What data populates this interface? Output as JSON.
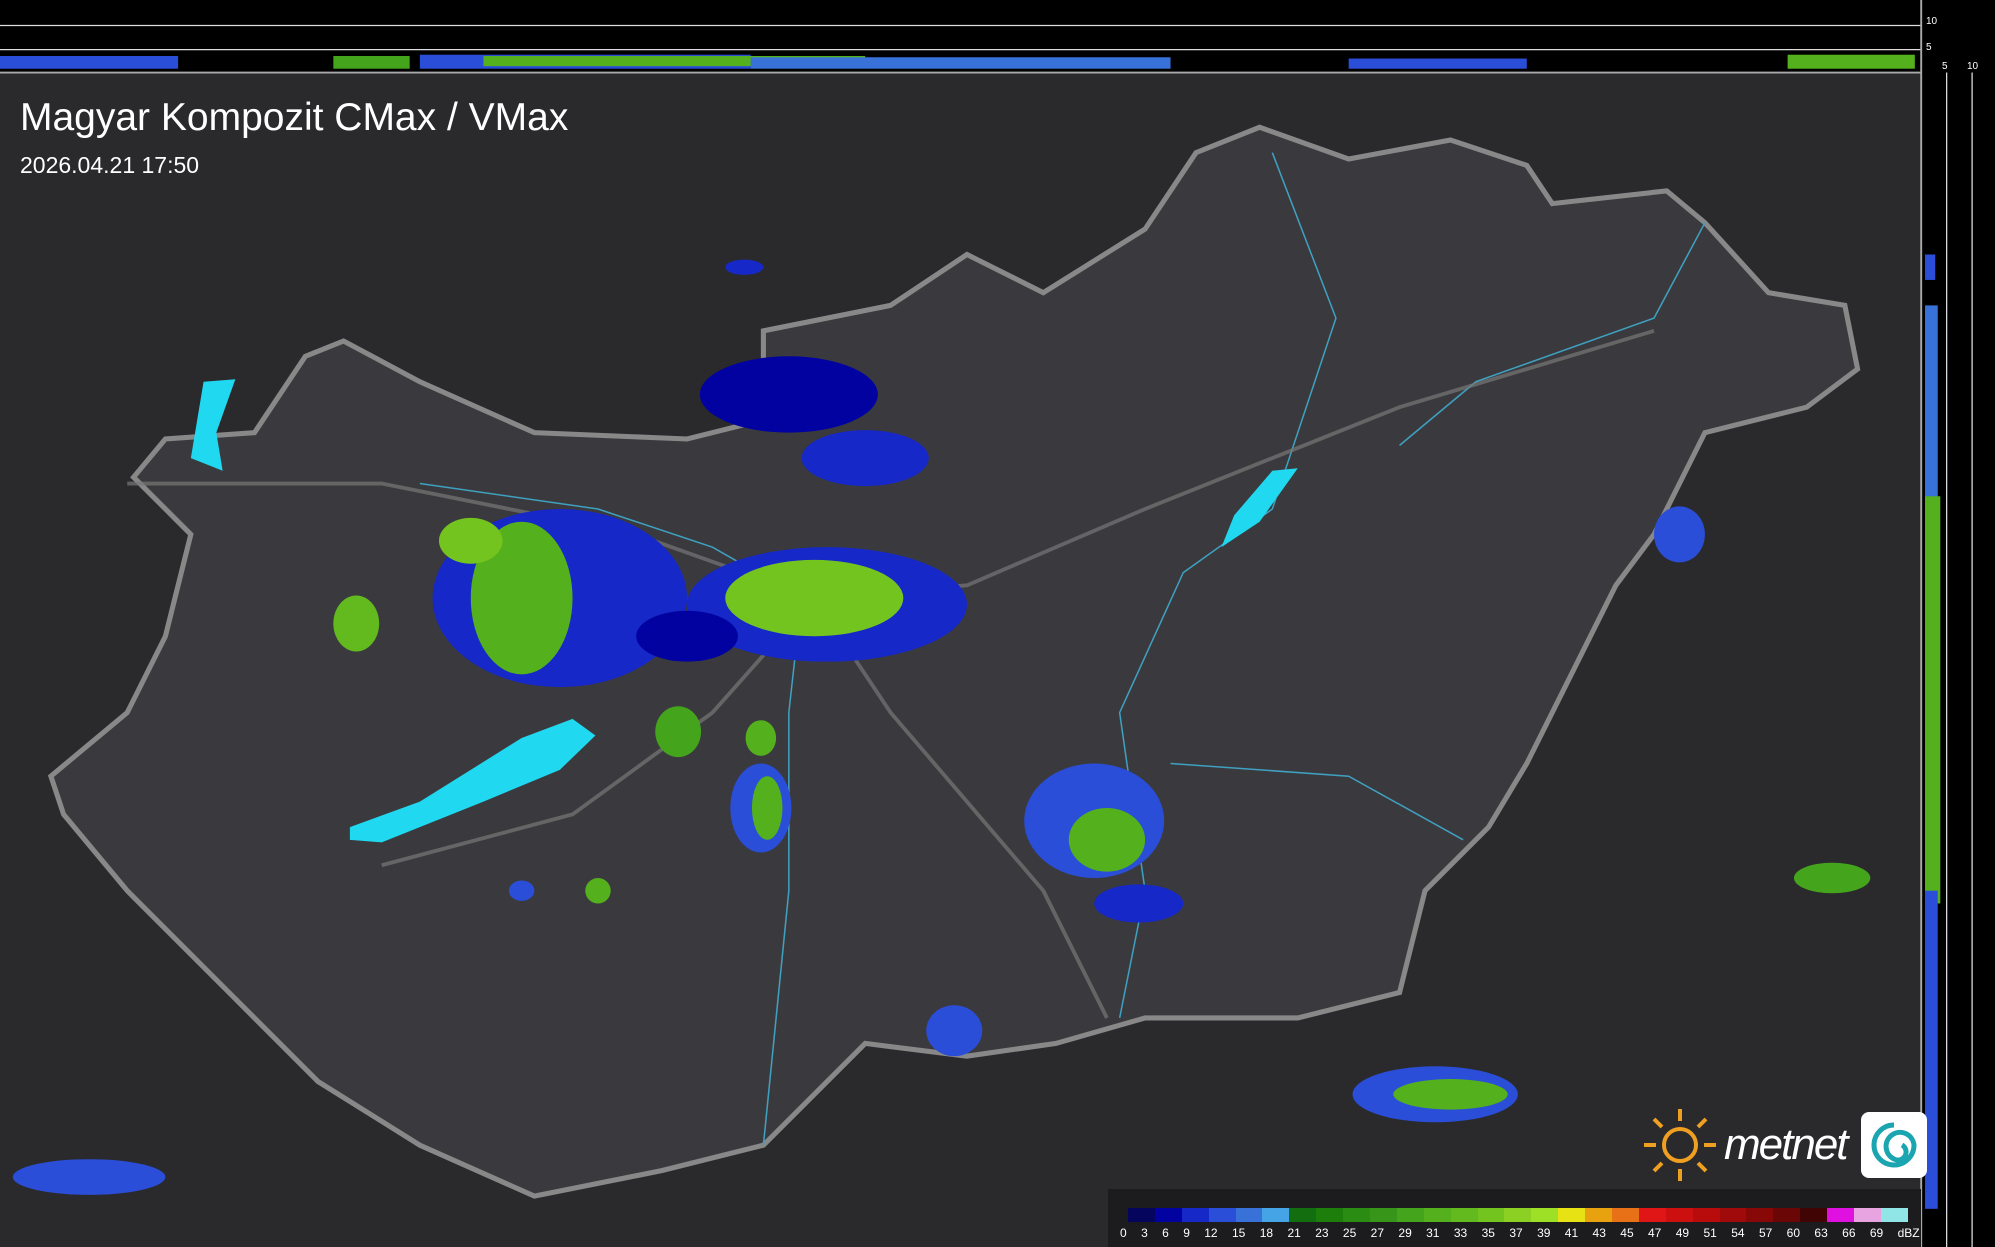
{
  "header": {
    "title": "Magyar Kompozit CMax / VMax",
    "timestamp": "2026.04.21 17:50"
  },
  "profile_axes": {
    "top_ticks": [
      "10",
      "5"
    ],
    "right_ticks": [
      "5",
      "10"
    ]
  },
  "legend": {
    "unit": "dBZ",
    "labels": [
      "0",
      "3",
      "6",
      "9",
      "12",
      "15",
      "18",
      "21",
      "23",
      "25",
      "27",
      "29",
      "31",
      "33",
      "35",
      "37",
      "39",
      "41",
      "43",
      "45",
      "47",
      "49",
      "51",
      "54",
      "57",
      "60",
      "63",
      "66",
      "69"
    ],
    "colors": [
      "#05055e",
      "#0202a0",
      "#1628c8",
      "#2a4ed8",
      "#3872d8",
      "#44a4e6",
      "#136e10",
      "#1d7e0c",
      "#2a8c12",
      "#37961a",
      "#44a41c",
      "#54b01c",
      "#62ba1e",
      "#74c420",
      "#8cd024",
      "#9ee026",
      "#e6e214",
      "#e8a210",
      "#e87016",
      "#e01616",
      "#cc1010",
      "#b80c0c",
      "#a00a0a",
      "#880808",
      "#6a0606",
      "#400404",
      "#e010e0",
      "#e8a4e0",
      "#90e6e6"
    ]
  },
  "brand": {
    "name": "metnet",
    "sun_color": "#f0a020"
  }
}
